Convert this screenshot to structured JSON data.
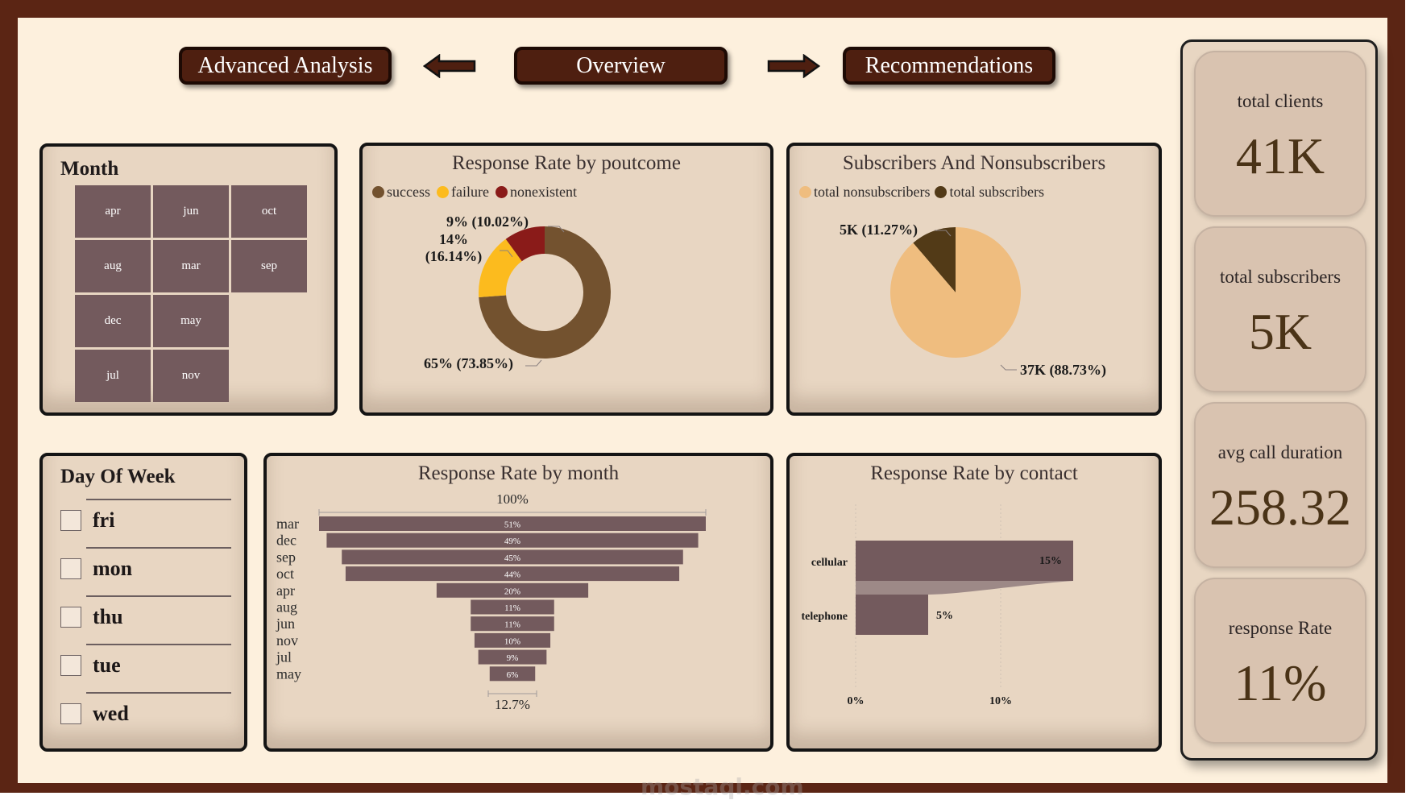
{
  "nav": {
    "advanced_label": "Advanced Analysis",
    "overview_label": "Overview",
    "recommendations_label": "Recommendations"
  },
  "month_slicer": {
    "title": "Month",
    "items": [
      "apr",
      "jun",
      "oct",
      "aug",
      "mar",
      "sep",
      "dec",
      "may",
      "jul",
      "nov"
    ]
  },
  "day_slicer": {
    "title": "Day Of Week",
    "items": [
      "fri",
      "mon",
      "thu",
      "tue",
      "wed"
    ]
  },
  "kpis": [
    {
      "label": "total clients",
      "value": "41K"
    },
    {
      "label": "total subscribers",
      "value": "5K"
    },
    {
      "label": "avg call duration",
      "value": "258.32"
    },
    {
      "label": "response Rate",
      "value": "11%"
    }
  ],
  "colors": {
    "success": "#73522f",
    "failure": "#fcbb1e",
    "nonexistent": "#8a1b19",
    "nonsubscribers": "#efbd7f",
    "subscribers": "#523a17",
    "bar": "#735a5d",
    "card_bg": "#e8d6c2",
    "frame": "#5b2514"
  },
  "watermark": "mostaql.com",
  "chart_data": [
    {
      "type": "pie",
      "variant": "donut",
      "title": "Response Rate by poutcome",
      "legend_position": "top-left",
      "slices": [
        {
          "name": "success",
          "value": 73.85,
          "label": "65% (73.85%)"
        },
        {
          "name": "failure",
          "value": 16.14,
          "label_line1": "14%",
          "label_line2": "(16.14%)"
        },
        {
          "name": "nonexistent",
          "value": 10.02,
          "label": "9% (10.02%)"
        }
      ]
    },
    {
      "type": "pie",
      "title": "Subscribers And Nonsubscribers",
      "legend_position": "top-left",
      "slices": [
        {
          "name": "total nonsubscribers",
          "value": 88.73,
          "label": "37K (88.73%)"
        },
        {
          "name": "total subscribers",
          "value": 11.27,
          "label": "5K (11.27%)"
        }
      ]
    },
    {
      "type": "bar",
      "variant": "funnel",
      "title": "Response Rate by month",
      "top_label": "100%",
      "bottom_label": "12.7%",
      "categories": [
        "mar",
        "dec",
        "sep",
        "oct",
        "apr",
        "aug",
        "jun",
        "nov",
        "jul",
        "may"
      ],
      "values": [
        51,
        49,
        45,
        44,
        20,
        11,
        11,
        10,
        9,
        6
      ],
      "value_labels": [
        "51%",
        "49%",
        "45%",
        "44%",
        "20%",
        "11%",
        "11%",
        "10%",
        "9%",
        "6%"
      ]
    },
    {
      "type": "bar",
      "orientation": "horizontal",
      "title": "Response Rate by contact",
      "categories": [
        "cellular",
        "telephone"
      ],
      "values": [
        15,
        5
      ],
      "value_labels": [
        "15%",
        "5%"
      ],
      "x_ticks": [
        "0%",
        "10%"
      ],
      "xlim": [
        0,
        15
      ]
    }
  ]
}
